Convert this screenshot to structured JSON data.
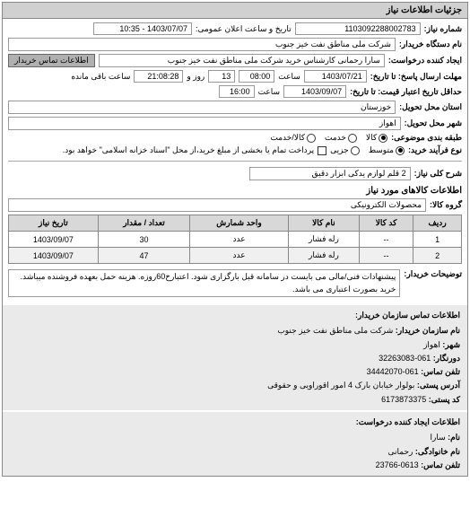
{
  "panel": {
    "title": "جزئیات اطلاعات نیاز"
  },
  "header": {
    "number_label": "شماره نیاز:",
    "number": "1103092288002783",
    "datetime_label": "تاریخ و ساعت اعلان عمومی:",
    "datetime": "1403/07/07 - 10:35",
    "org_label": "نام دستگاه خریدار:",
    "org": "شرکت ملی مناطق نفت خیز جنوب",
    "creator_label": "ایجاد کننده درخواست:",
    "creator": "سارا رحمانی کارشناس خرید شرکت ملی مناطق نفت خیز جنوب",
    "buyer_contact_badge": "اطلاعات تماس خریدار",
    "deadline_reply_label": "مهلت ارسال پاسخ: تا تاریخ:",
    "deadline_reply_date": "1403/07/21",
    "deadline_reply_time_label": "ساعت",
    "deadline_reply_time": "08:00",
    "deadline_reply_days_label": "روز و",
    "deadline_reply_days": "13",
    "deadline_reply_remain_label": "ساعت باقی مانده",
    "deadline_reply_remain": "21:08:28",
    "validity_label": "حداقل تاریخ اعتبار قیمت: تا تاریخ:",
    "validity_date": "1403/09/07",
    "validity_time_label": "ساعت",
    "validity_time": "16:00",
    "province_label": "استان محل تحویل:",
    "province": "خوزستان",
    "city_label": "شهر محل تحویل:",
    "city": "اهواز",
    "category_label": "طبقه بندی موضوعی:",
    "category_goods": "کالا",
    "category_service": "خدمت",
    "category_both": "کالا/خدمت",
    "process_label": "نوع فرآیند خرید:",
    "process_small": "متوسط",
    "process_partial": "جزیی",
    "process_note": "پرداخت تمام یا بخشی از مبلغ خرید،از محل \"اسناد خزانه اسلامی\" خواهد بود.",
    "process_checkbox_label": ""
  },
  "need": {
    "title_label": "شرح کلی نیاز:",
    "title": "2 قلم لوازم یدکی ابزار دقیق"
  },
  "goods": {
    "section_title": "اطلاعات کالاهای مورد نیاز",
    "group_label": "گروه کالا:",
    "group": "محصولات الکترونیکی",
    "columns": [
      "ردیف",
      "کد کالا",
      "نام کالا",
      "واحد شمارش",
      "تعداد / مقدار",
      "تاریخ نیاز"
    ],
    "rows": [
      [
        "1",
        "--",
        "رله فشار",
        "عدد",
        "30",
        "1403/09/07"
      ],
      [
        "2",
        "--",
        "رله فشار",
        "عدد",
        "47",
        "1403/09/07"
      ]
    ]
  },
  "buyer_note": {
    "label": "توضیحات خریدار:",
    "text": "پیشنهادات فنی/مالی می بایست در سامانه قبل بارگزاری شود. اعتبارخ60روزه. هزینه حمل بعهده فروشنده میباشد. خرید بصورت اعتباری می باشد."
  },
  "contact1": {
    "header": "اطلاعات تماس سازمان خریدار:",
    "org_label": "نام سازمان خریدار:",
    "org": "شرکت ملی مناطق نفت خیز جنوب",
    "city_label": "شهر:",
    "city": "اهواز",
    "fax_label": "دورنگار:",
    "fax": "061-32263083",
    "phone_label": "تلفن تماس:",
    "phone": "061-34442070",
    "address_label": "آدرس پستی:",
    "address": "بولوار خیابان بارک 4 امور اقوراویی و حقوقی",
    "postcode_label": "کد پستی:",
    "postcode": "6173873375"
  },
  "contact2": {
    "header": "اطلاعات ایجاد کننده درخواست:",
    "name_label": "نام:",
    "name": "سارا",
    "surname_label": "نام خانوادگی:",
    "surname": "رحمانی",
    "phone_label": "تلفن تماس:",
    "phone": "0613-23766"
  },
  "style": {
    "bg": "#ffffff",
    "panel_header_bg": "#d0d0d0",
    "th_bg": "#d8d8d8",
    "border": "#888888",
    "badge_bg": "#b0b0b0",
    "contact_bg": "#eaeaea"
  }
}
